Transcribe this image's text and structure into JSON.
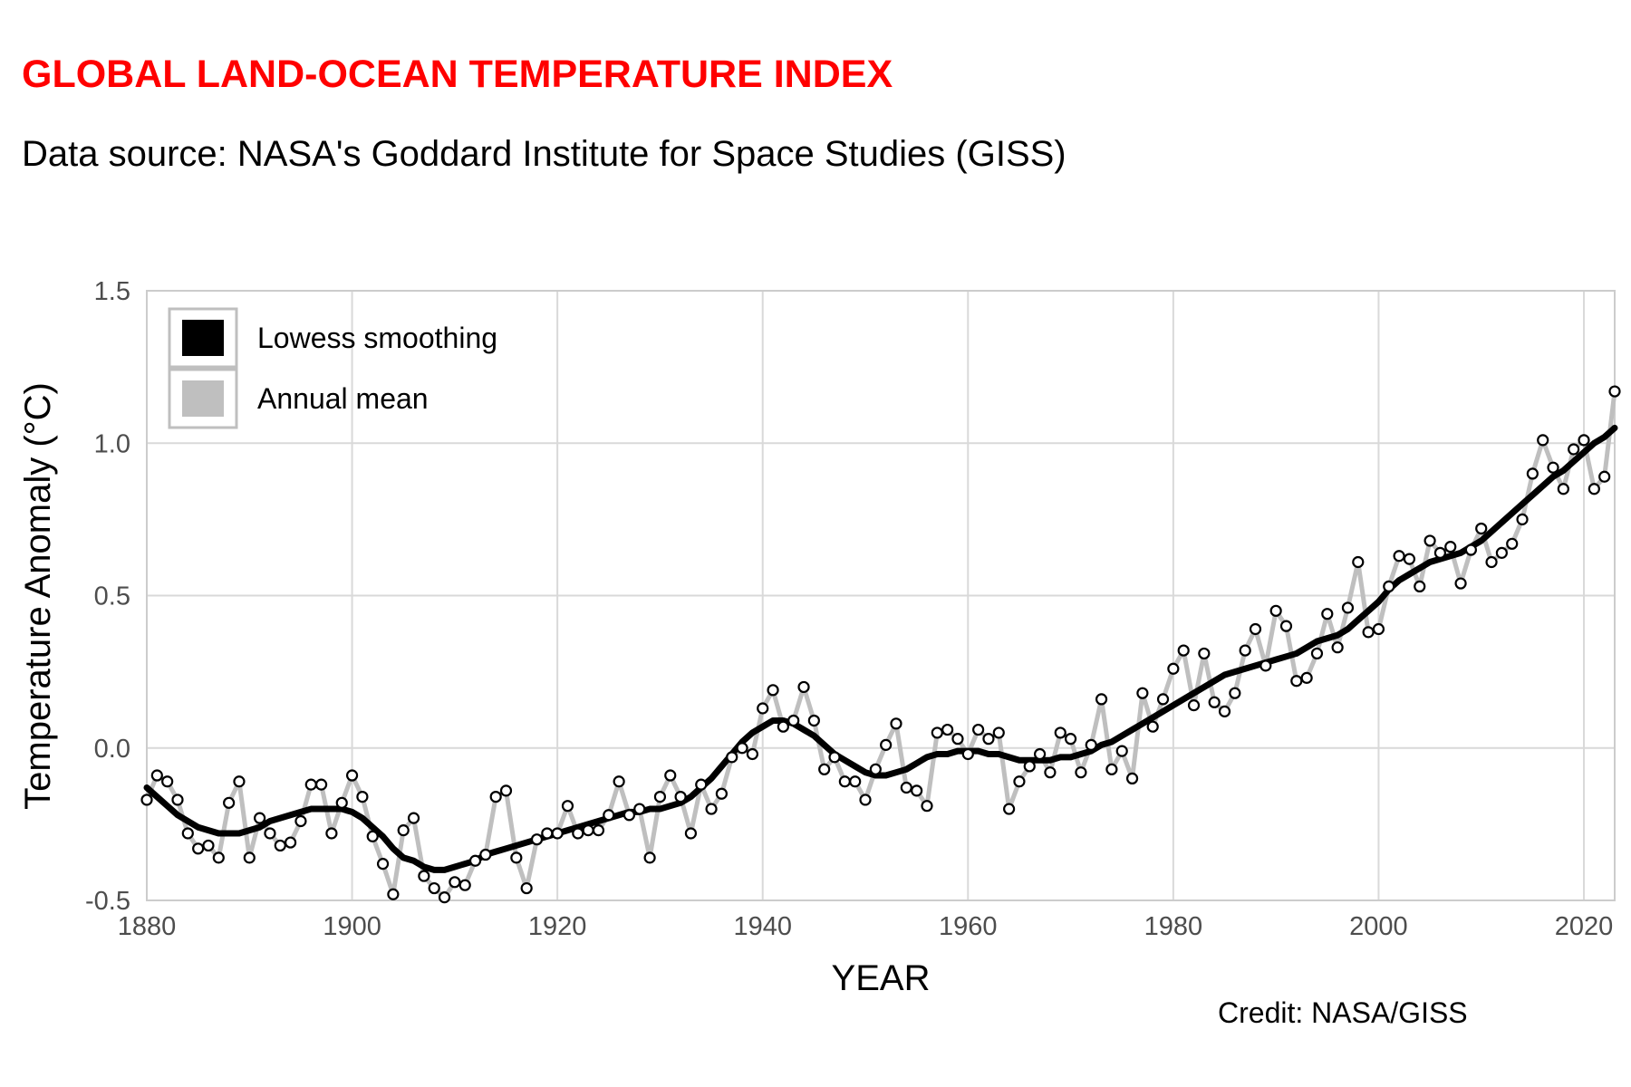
{
  "header": {
    "title": "GLOBAL LAND-OCEAN TEMPERATURE INDEX",
    "subtitle": "Data source: NASA's Goddard Institute for Space Studies (GISS)"
  },
  "footer": {
    "credit": "Credit: NASA/GISS"
  },
  "colors": {
    "title": "#ff0000",
    "lowess": "#000000",
    "annual": "#bfbfbf",
    "grid": "#d9d9d9",
    "tick_text": "#4d4d4d"
  },
  "chart_data": {
    "type": "line",
    "title": "GLOBAL LAND-OCEAN TEMPERATURE INDEX",
    "subtitle": "Data source: NASA's Goddard Institute for Space Studies (GISS)",
    "xlabel": "YEAR",
    "ylabel": "Temperature Anomaly (°C)",
    "xlim": [
      1880,
      2023
    ],
    "ylim": [
      -0.5,
      1.5
    ],
    "x_ticks": [
      1880,
      1900,
      1920,
      1940,
      1960,
      1980,
      2000,
      2020
    ],
    "x_tick_labels": [
      "1880",
      "1900",
      "1920",
      "1940",
      "1960",
      "1980",
      "2000",
      "2020"
    ],
    "y_ticks": [
      -0.5,
      0.0,
      0.5,
      1.0,
      1.5
    ],
    "y_tick_labels": [
      "-0.5",
      "0.0",
      "0.5",
      "1.0",
      "1.5"
    ],
    "grid": true,
    "legend": {
      "position": "top-left",
      "entries": [
        {
          "label": "Lowess smoothing",
          "color": "#000000"
        },
        {
          "label": "Annual mean",
          "color": "#bfbfbf"
        }
      ]
    },
    "series": [
      {
        "name": "Annual mean",
        "color": "#bfbfbf",
        "markers": true,
        "x_start": 1880,
        "values": [
          -0.17,
          -0.09,
          -0.11,
          -0.17,
          -0.28,
          -0.33,
          -0.32,
          -0.36,
          -0.18,
          -0.11,
          -0.36,
          -0.23,
          -0.28,
          -0.32,
          -0.31,
          -0.24,
          -0.12,
          -0.12,
          -0.28,
          -0.18,
          -0.09,
          -0.16,
          -0.29,
          -0.38,
          -0.48,
          -0.27,
          -0.23,
          -0.42,
          -0.46,
          -0.49,
          -0.44,
          -0.45,
          -0.37,
          -0.35,
          -0.16,
          -0.14,
          -0.36,
          -0.46,
          -0.3,
          -0.28,
          -0.28,
          -0.19,
          -0.28,
          -0.27,
          -0.27,
          -0.22,
          -0.11,
          -0.22,
          -0.2,
          -0.36,
          -0.16,
          -0.09,
          -0.16,
          -0.28,
          -0.12,
          -0.2,
          -0.15,
          -0.03,
          0.0,
          -0.02,
          0.13,
          0.19,
          0.07,
          0.09,
          0.2,
          0.09,
          -0.07,
          -0.03,
          -0.11,
          -0.11,
          -0.17,
          -0.07,
          0.01,
          0.08,
          -0.13,
          -0.14,
          -0.19,
          0.05,
          0.06,
          0.03,
          -0.02,
          0.06,
          0.03,
          0.05,
          -0.2,
          -0.11,
          -0.06,
          -0.02,
          -0.08,
          0.05,
          0.03,
          -0.08,
          0.01,
          0.16,
          -0.07,
          -0.01,
          -0.1,
          0.18,
          0.07,
          0.16,
          0.26,
          0.32,
          0.14,
          0.31,
          0.15,
          0.12,
          0.18,
          0.32,
          0.39,
          0.27,
          0.45,
          0.4,
          0.22,
          0.23,
          0.31,
          0.44,
          0.33,
          0.46,
          0.61,
          0.38,
          0.39,
          0.53,
          0.63,
          0.62,
          0.53,
          0.68,
          0.64,
          0.66,
          0.54,
          0.65,
          0.72,
          0.61,
          0.64,
          0.67,
          0.75,
          0.9,
          1.01,
          0.92,
          0.85,
          0.98,
          1.01,
          0.85,
          0.89,
          1.17
        ]
      },
      {
        "name": "Lowess smoothing",
        "color": "#000000",
        "markers": false,
        "x_start": 1880,
        "values": [
          -0.13,
          -0.16,
          -0.19,
          -0.22,
          -0.24,
          -0.26,
          -0.27,
          -0.28,
          -0.28,
          -0.28,
          -0.27,
          -0.26,
          -0.24,
          -0.23,
          -0.22,
          -0.21,
          -0.2,
          -0.2,
          -0.2,
          -0.2,
          -0.21,
          -0.23,
          -0.26,
          -0.29,
          -0.33,
          -0.36,
          -0.37,
          -0.39,
          -0.4,
          -0.4,
          -0.39,
          -0.38,
          -0.37,
          -0.35,
          -0.34,
          -0.33,
          -0.32,
          -0.31,
          -0.3,
          -0.29,
          -0.28,
          -0.27,
          -0.26,
          -0.25,
          -0.24,
          -0.23,
          -0.22,
          -0.21,
          -0.21,
          -0.2,
          -0.2,
          -0.19,
          -0.18,
          -0.16,
          -0.13,
          -0.1,
          -0.06,
          -0.02,
          0.02,
          0.05,
          0.07,
          0.09,
          0.09,
          0.08,
          0.06,
          0.04,
          0.01,
          -0.02,
          -0.04,
          -0.06,
          -0.08,
          -0.09,
          -0.09,
          -0.08,
          -0.07,
          -0.05,
          -0.03,
          -0.02,
          -0.02,
          -0.01,
          -0.01,
          -0.01,
          -0.02,
          -0.02,
          -0.03,
          -0.04,
          -0.04,
          -0.04,
          -0.04,
          -0.03,
          -0.03,
          -0.02,
          -0.01,
          0.01,
          0.02,
          0.04,
          0.06,
          0.08,
          0.1,
          0.12,
          0.14,
          0.16,
          0.18,
          0.2,
          0.22,
          0.24,
          0.25,
          0.26,
          0.27,
          0.28,
          0.29,
          0.3,
          0.31,
          0.33,
          0.35,
          0.36,
          0.37,
          0.39,
          0.42,
          0.45,
          0.48,
          0.52,
          0.55,
          0.57,
          0.59,
          0.61,
          0.62,
          0.63,
          0.64,
          0.66,
          0.68,
          0.71,
          0.74,
          0.77,
          0.8,
          0.83,
          0.86,
          0.89,
          0.91,
          0.94,
          0.97,
          1.0,
          1.02,
          1.05
        ]
      }
    ]
  }
}
